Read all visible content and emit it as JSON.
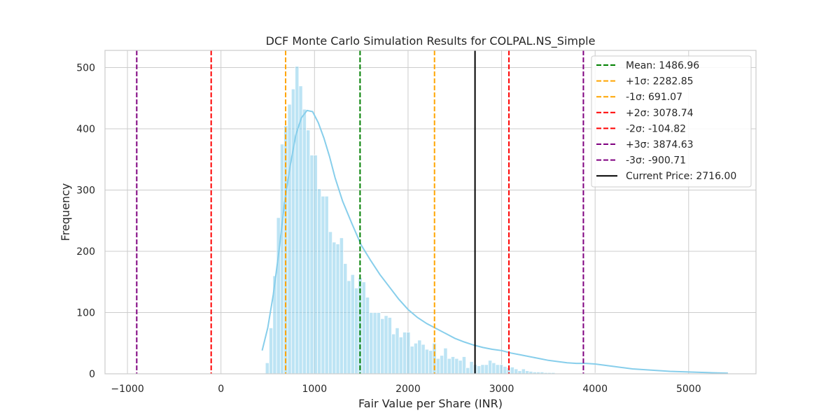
{
  "chart_data": {
    "type": "bar",
    "title": "DCF Monte Carlo Simulation Results for COLPAL.NS_Simple",
    "xlabel": "Fair Value per Share (INR)",
    "ylabel": "Frequency",
    "xlim": [
      -1240,
      5720
    ],
    "ylim": [
      0,
      528
    ],
    "xticks": [
      -1000,
      0,
      1000,
      2000,
      3000,
      4000,
      5000
    ],
    "xtick_labels": [
      "−1000",
      "0",
      "1000",
      "2000",
      "3000",
      "4000",
      "5000"
    ],
    "yticks": [
      0,
      100,
      200,
      300,
      400,
      500
    ],
    "ytick_labels": [
      "0",
      "100",
      "200",
      "300",
      "400",
      "500"
    ],
    "grid": true,
    "legend_position": "top-right",
    "histogram": {
      "bin_start": 475,
      "bin_width": 39.7,
      "color": "#87CEEB",
      "counts": [
        18,
        75,
        160,
        255,
        375,
        405,
        440,
        465,
        502,
        470,
        432,
        398,
        357,
        357,
        302,
        290,
        290,
        232,
        215,
        212,
        222,
        180,
        152,
        162,
        140,
        157,
        150,
        125,
        100,
        100,
        100,
        90,
        95,
        92,
        65,
        75,
        60,
        68,
        68,
        45,
        50,
        55,
        48,
        40,
        38,
        50,
        25,
        30,
        42,
        25,
        28,
        25,
        22,
        28,
        10,
        20,
        15,
        13,
        15,
        15,
        22,
        18,
        15,
        15,
        12,
        10,
        11,
        8,
        5,
        8,
        5,
        4,
        3,
        3,
        3,
        2,
        2,
        2,
        1,
        1,
        1,
        1,
        1,
        1,
        1,
        1,
        1,
        1,
        1,
        1,
        1,
        1,
        1,
        1,
        1,
        1,
        1
      ]
    },
    "kde": {
      "color": "#87CEEB",
      "x": [
        440,
        500,
        560,
        620,
        680,
        740,
        800,
        860,
        920,
        980,
        1040,
        1100,
        1160,
        1220,
        1300,
        1400,
        1500,
        1600,
        1700,
        1800,
        1900,
        2000,
        2100,
        2200,
        2300,
        2400,
        2500,
        2600,
        2700,
        2800,
        2900,
        3000,
        3100,
        3200,
        3300,
        3400,
        3500,
        3600,
        3700,
        3800,
        3900,
        4000,
        4100,
        4200,
        4300,
        4400,
        4600,
        4800,
        5000,
        5200,
        5420
      ],
      "y": [
        38,
        75,
        130,
        200,
        280,
        340,
        390,
        418,
        430,
        428,
        410,
        385,
        355,
        320,
        282,
        245,
        210,
        185,
        162,
        142,
        122,
        105,
        92,
        82,
        74,
        66,
        58,
        52,
        47,
        43,
        40,
        38,
        34,
        31,
        28,
        25,
        22,
        20,
        18,
        17,
        17,
        16,
        14,
        12,
        10,
        8,
        6,
        4,
        3,
        2,
        1
      ]
    },
    "lines": [
      {
        "label": "Mean: 1486.96",
        "value": 1486.96,
        "color": "#008000",
        "style": "dashed"
      },
      {
        "label": "+1σ: 2282.85",
        "value": 2282.85,
        "color": "#FFA500",
        "style": "dashed"
      },
      {
        "label": "-1σ: 691.07",
        "value": 691.07,
        "color": "#FFA500",
        "style": "dashed"
      },
      {
        "label": "+2σ: 3078.74",
        "value": 3078.74,
        "color": "#FF0000",
        "style": "dashed"
      },
      {
        "label": "-2σ: -104.82",
        "value": -104.82,
        "color": "#FF0000",
        "style": "dashed"
      },
      {
        "label": "+3σ: 3874.63",
        "value": 3874.63,
        "color": "#800080",
        "style": "dashed"
      },
      {
        "label": "-3σ: -900.71",
        "value": -900.71,
        "color": "#800080",
        "style": "dashed"
      },
      {
        "label": "Current Price: 2716.00",
        "value": 2716.0,
        "color": "#000000",
        "style": "solid"
      }
    ]
  }
}
